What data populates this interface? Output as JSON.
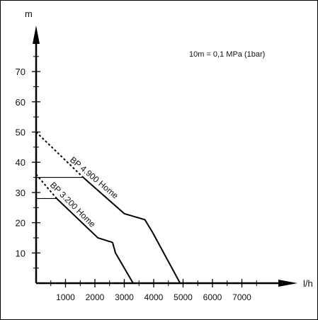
{
  "chart_data": {
    "type": "line",
    "title": "",
    "xlabel": "l/h",
    "ylabel": "m",
    "xlim": [
      0,
      8700
    ],
    "ylim": [
      0,
      82
    ],
    "x_ticks": [
      1000,
      2000,
      3000,
      4000,
      5000,
      6000,
      7000
    ],
    "x_tick_labels": [
      "1000",
      "2000",
      "3000",
      "4000",
      "5000",
      "6000",
      "7000"
    ],
    "y_ticks": [
      10,
      20,
      30,
      40,
      50,
      60,
      70
    ],
    "y_tick_labels": [
      "10",
      "20",
      "30",
      "40",
      "50",
      "60",
      "70"
    ],
    "annotation": "10m = 0,1 MPa (1bar)",
    "grid": false,
    "series": [
      {
        "name": "BP 4.900 Home",
        "dashed_segment": [
          [
            0,
            50
          ],
          [
            1600,
            35
          ]
        ],
        "values": [
          [
            1600,
            35
          ],
          [
            3000,
            23
          ],
          [
            3700,
            21
          ],
          [
            3950,
            17
          ],
          [
            4900,
            0
          ]
        ],
        "flat_marker_y": 35
      },
      {
        "name": "BP 3.200 Home",
        "dashed_segment": [
          [
            0,
            36
          ],
          [
            700,
            28
          ]
        ],
        "values": [
          [
            700,
            28
          ],
          [
            2100,
            15
          ],
          [
            2600,
            13.5
          ],
          [
            2700,
            10
          ],
          [
            3300,
            0
          ]
        ],
        "flat_marker_y": 28
      }
    ]
  }
}
